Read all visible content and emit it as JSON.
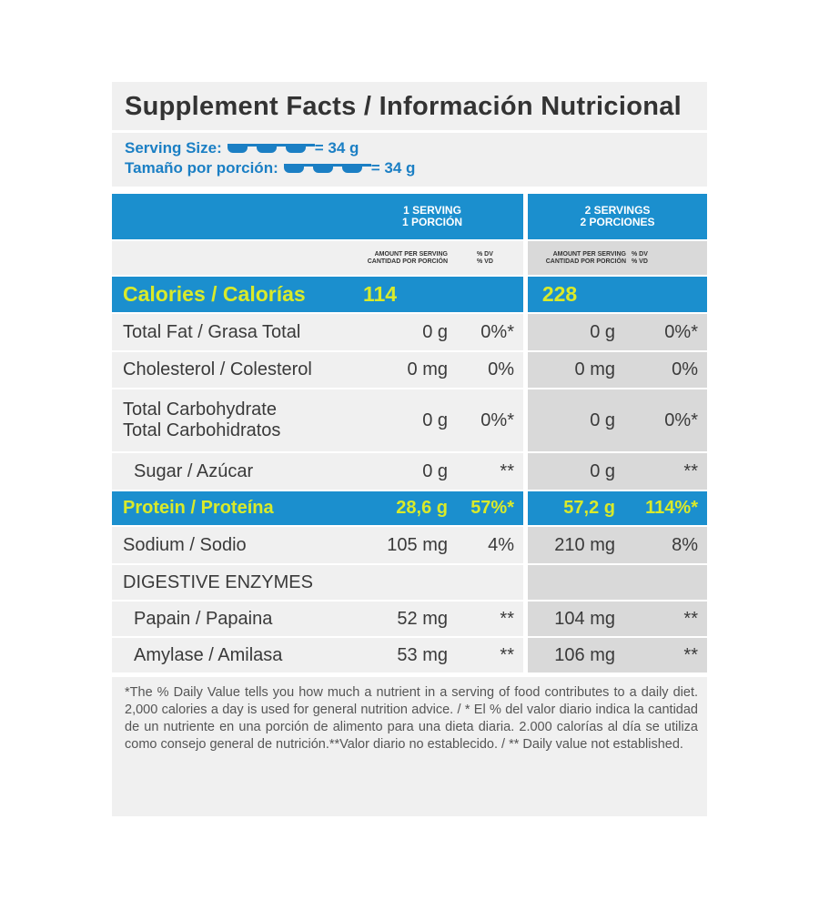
{
  "header": {
    "title": "Supplement Facts / Información Nutricional"
  },
  "serving": {
    "size_label": "Serving Size:",
    "size_value": "= 34 g",
    "portion_label": "Tamaño por porción:",
    "portion_value": "= 34 g"
  },
  "columns": {
    "serving_1": [
      "1 SERVING",
      "1 PORCIÓN"
    ],
    "serving_2": [
      "2 SERVINGS",
      "2 PORCIONES"
    ],
    "amount": [
      "AMOUNT PER SERVING",
      "CANTIDAD POR PORCIÓN"
    ],
    "dv": [
      "% DV",
      "% VD"
    ]
  },
  "table": {
    "rows": [
      {
        "label": "Calories / Calorías",
        "amount_1": "114",
        "amount_2": "228"
      },
      {
        "label": "Total Fat / Grasa Total",
        "amount_1": "0 g",
        "dv_1": "0%*",
        "amount_2": "0 g",
        "dv_2": "0%*"
      },
      {
        "label": "Cholesterol / Colesterol",
        "amount_1": "0 mg",
        "dv_1": "0%",
        "amount_2": "0 mg",
        "dv_2": "0%"
      },
      {
        "label": [
          "Total Carbohydrate",
          "Total Carbohidratos"
        ],
        "amount_1": "0 g",
        "dv_1": "0%*",
        "amount_2": "0 g",
        "dv_2": "0%*"
      },
      {
        "label": "Sugar / Azúcar",
        "amount_1": "0 g",
        "dv_1": "**",
        "amount_2": "0 g",
        "dv_2": "**"
      },
      {
        "label": "Protein / Proteína",
        "amount_1": "28,6 g",
        "dv_1": "57%*",
        "amount_2": "57,2 g",
        "dv_2": "114%*"
      },
      {
        "label": "Sodium / Sodio",
        "amount_1": "105 mg",
        "dv_1": "4%",
        "amount_2": "210 mg",
        "dv_2": "8%"
      },
      {
        "label": "DIGESTIVE ENZYMES"
      },
      {
        "label": "Papain / Papaina",
        "amount_1": "52 mg",
        "dv_1": "**",
        "amount_2": "104 mg",
        "dv_2": "**"
      },
      {
        "label": "Amylase / Amilasa",
        "amount_1": "53 mg",
        "dv_1": "**",
        "amount_2": "106 mg",
        "dv_2": "**"
      }
    ]
  },
  "footnote": "*The % Daily Value tells you how much a nutrient in a serving of food contributes to a daily diet. 2,000 calories a day is used for general nutrition advice. / * El % del valor diario indica la cantidad de un nutriente en una porción de alimento para una dieta diaria. 2.000 calorías al día se utiliza como consejo general de nutrición.**Valor diario no establecido. / ** Daily value not established."
}
